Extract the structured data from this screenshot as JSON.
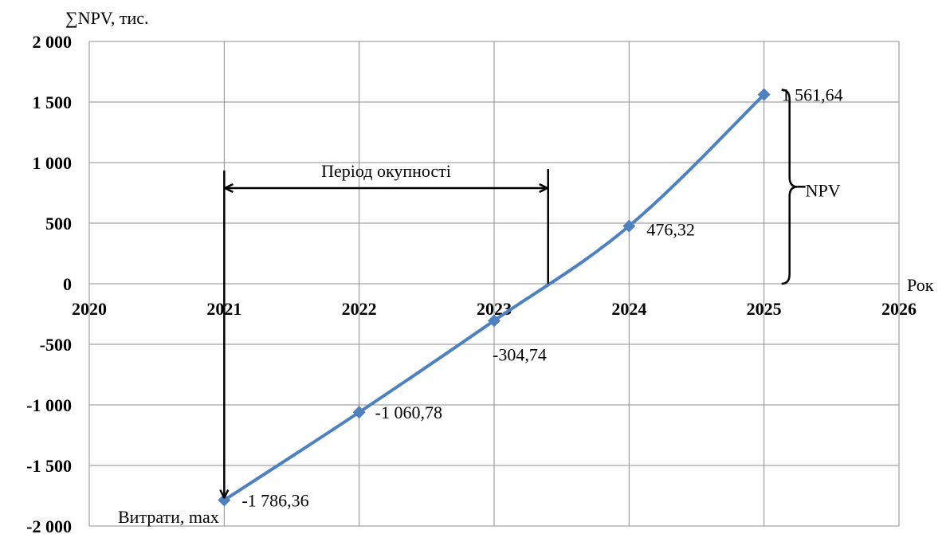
{
  "chart_data": {
    "type": "line",
    "ylabel": "∑NPV, тис.",
    "xlabel": "Рок",
    "x_ticks": [
      "2020",
      "2021",
      "2022",
      "2023",
      "2024",
      "2025",
      "2026"
    ],
    "y_ticks": [
      "2 000",
      "1 500",
      "1 000",
      "500",
      "0",
      "-500",
      "-1 000",
      "-1 500",
      "-2 000"
    ],
    "xlim": [
      2020,
      2026
    ],
    "ylim": [
      -2000,
      2000
    ],
    "y_tick_values": [
      2000,
      1500,
      1000,
      500,
      0,
      -500,
      -1000,
      -1500,
      -2000
    ],
    "grid": true,
    "series": [
      {
        "x": [
          2021,
          2022,
          2023,
          2024,
          2025
        ],
        "values": [
          -1786.36,
          -1060.78,
          -304.74,
          476.32,
          1561.64
        ],
        "labels": [
          "-1 786,36",
          "-1 060,78",
          "-304,74",
          "476,32",
          "1 561,64"
        ]
      }
    ],
    "series_color": "#4f81bd",
    "annotations": {
      "payback_label": "Період окупності",
      "payback_from": 2021,
      "payback_to": 2023.4,
      "npv_label": "NPV",
      "costs_label": "Витрати, max"
    }
  }
}
